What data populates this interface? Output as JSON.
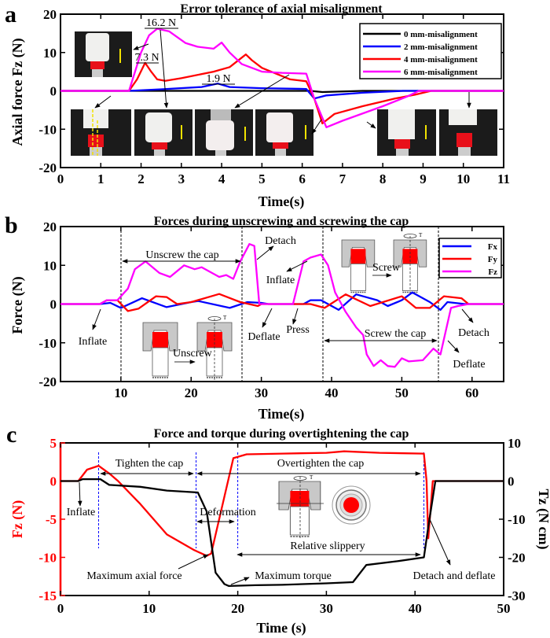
{
  "panel_labels": [
    "a",
    "b",
    "c"
  ],
  "colors": {
    "black": "#000000",
    "blue": "#0000ff",
    "red": "#ff0000",
    "magenta": "#ff00ff",
    "guide": "#0000ff"
  },
  "chart_data": [
    {
      "type": "line",
      "title": "Error tolerance of axial misalignment",
      "xlabel": "Time(s)",
      "ylabel": "Axial force Fz (N)",
      "xlim": [
        0,
        11
      ],
      "ylim": [
        -20,
        20
      ],
      "xticks": [
        0,
        1,
        2,
        3,
        4,
        5,
        6,
        7,
        8,
        9,
        10,
        11
      ],
      "yticks": [
        20,
        10,
        0,
        -10,
        -20
      ],
      "legend": "top-right",
      "series": [
        {
          "name": "0 mm-misalignment",
          "color": "#000000",
          "points": [
            [
              0,
              0
            ],
            [
              6.2,
              0
            ],
            [
              6.5,
              -0.3
            ],
            [
              7.5,
              0
            ],
            [
              11,
              0
            ]
          ]
        },
        {
          "name": "2 mm-misalignment",
          "color": "#0000ff",
          "points": [
            [
              0,
              0
            ],
            [
              1.7,
              0
            ],
            [
              2.5,
              0.4
            ],
            [
              3.5,
              1.0
            ],
            [
              3.9,
              1.9
            ],
            [
              4.2,
              1.0
            ],
            [
              5,
              0.7
            ],
            [
              6.1,
              0.5
            ],
            [
              6.3,
              -2
            ],
            [
              6.6,
              -1.2
            ],
            [
              7.5,
              -0.5
            ],
            [
              8.5,
              0
            ],
            [
              11,
              0
            ]
          ]
        },
        {
          "name": "4 mm-misalignment",
          "color": "#ff0000",
          "points": [
            [
              0,
              0
            ],
            [
              1.7,
              0
            ],
            [
              1.9,
              3
            ],
            [
              2.1,
              7.3
            ],
            [
              2.25,
              5
            ],
            [
              2.4,
              3
            ],
            [
              2.6,
              2.6
            ],
            [
              3,
              3.3
            ],
            [
              3.8,
              5
            ],
            [
              4.2,
              6.2
            ],
            [
              4.6,
              9.5
            ],
            [
              4.75,
              8
            ],
            [
              5,
              6
            ],
            [
              5.7,
              3
            ],
            [
              6.1,
              2.5
            ],
            [
              6.3,
              -2
            ],
            [
              6.5,
              -8.5
            ],
            [
              6.8,
              -6
            ],
            [
              7.5,
              -4
            ],
            [
              8.3,
              -2
            ],
            [
              8.8,
              -1
            ],
            [
              9.2,
              0
            ],
            [
              11,
              0
            ]
          ]
        },
        {
          "name": "6 mm-misalignment",
          "color": "#ff00ff",
          "points": [
            [
              0,
              0
            ],
            [
              1.7,
              0
            ],
            [
              2,
              10
            ],
            [
              2.2,
              14.5
            ],
            [
              2.4,
              16.2
            ],
            [
              2.7,
              15.5
            ],
            [
              3.1,
              12.5
            ],
            [
              3.4,
              11.5
            ],
            [
              3.8,
              11
            ],
            [
              4.0,
              12.6
            ],
            [
              4.2,
              10
            ],
            [
              4.5,
              7
            ],
            [
              5,
              5
            ],
            [
              5.5,
              4.7
            ],
            [
              6.1,
              4.5
            ],
            [
              6.3,
              -2
            ],
            [
              6.6,
              -9.5
            ],
            [
              7,
              -7.8
            ],
            [
              8,
              -4
            ],
            [
              8.6,
              -1.5
            ],
            [
              8.9,
              0
            ],
            [
              11,
              0
            ]
          ]
        }
      ],
      "annotations": {
        "peak_6mm": "16.2 N",
        "peak_4mm": "7.3 N",
        "peak_2mm": "1.9 N"
      }
    },
    {
      "type": "line",
      "title": "Forces during unscrewing and screwing the cap",
      "xlabel": "Time(s)",
      "ylabel": "Force (N)",
      "xlim": [
        1.4,
        64.5
      ],
      "ylim": [
        -20,
        20
      ],
      "xticks": [
        10,
        20,
        30,
        40,
        50,
        60
      ],
      "yticks": [
        20,
        10,
        0,
        -10,
        -20
      ],
      "legend": "top-right",
      "series": [
        {
          "name": "Fx",
          "color": "#0000ff",
          "points": [
            [
              1.4,
              0
            ],
            [
              7,
              0
            ],
            [
              8.5,
              0.3
            ],
            [
              10,
              -1
            ],
            [
              13,
              1.5
            ],
            [
              16.5,
              -0.8
            ],
            [
              20,
              0.5
            ],
            [
              21,
              0.8
            ],
            [
              25.5,
              -1
            ],
            [
              28,
              0.5
            ],
            [
              30,
              0.3
            ],
            [
              31,
              0
            ],
            [
              36,
              0
            ],
            [
              37,
              1
            ],
            [
              38.5,
              1
            ],
            [
              41,
              -1.5
            ],
            [
              43.5,
              2.5
            ],
            [
              46.5,
              1
            ],
            [
              48,
              -0.5
            ],
            [
              50,
              1
            ],
            [
              51.5,
              3
            ],
            [
              54,
              0.5
            ],
            [
              55.5,
              -1.5
            ],
            [
              56.5,
              0.5
            ],
            [
              59,
              0
            ],
            [
              64.5,
              0
            ]
          ]
        },
        {
          "name": "Fy",
          "color": "#ff0000",
          "points": [
            [
              1.4,
              0
            ],
            [
              7,
              0
            ],
            [
              8,
              1
            ],
            [
              9.5,
              1
            ],
            [
              11,
              -1.8
            ],
            [
              12.5,
              -1.2
            ],
            [
              15,
              2
            ],
            [
              16.5,
              1.8
            ],
            [
              18,
              0
            ],
            [
              20,
              0.5
            ],
            [
              24,
              2.6
            ],
            [
              27,
              0.5
            ],
            [
              29.5,
              -0.5
            ],
            [
              30,
              0
            ],
            [
              37,
              0
            ],
            [
              39,
              -1
            ],
            [
              42,
              2.5
            ],
            [
              45.5,
              -0.5
            ],
            [
              50,
              2
            ],
            [
              52,
              -1
            ],
            [
              54,
              -1
            ],
            [
              56,
              2
            ],
            [
              58.5,
              1.5
            ],
            [
              59.5,
              0
            ],
            [
              64.5,
              0
            ]
          ]
        },
        {
          "name": "Fz",
          "color": "#ff00ff",
          "points": [
            [
              1.4,
              0
            ],
            [
              7,
              0
            ],
            [
              8,
              1
            ],
            [
              9.5,
              1
            ],
            [
              11,
              4
            ],
            [
              12,
              9
            ],
            [
              13.5,
              11
            ],
            [
              15.5,
              8
            ],
            [
              17,
              7
            ],
            [
              19,
              10
            ],
            [
              20.5,
              9
            ],
            [
              21.5,
              9.5
            ],
            [
              24,
              7
            ],
            [
              25,
              7.5
            ],
            [
              26,
              6.5
            ],
            [
              27,
              11
            ],
            [
              28.3,
              15.5
            ],
            [
              29,
              15
            ],
            [
              29.7,
              0
            ],
            [
              34.5,
              0
            ],
            [
              36,
              11
            ],
            [
              37,
              12
            ],
            [
              38.5,
              12.8
            ],
            [
              39.5,
              10
            ],
            [
              40.5,
              3
            ],
            [
              42,
              -2
            ],
            [
              43.5,
              -6
            ],
            [
              44.5,
              -8
            ],
            [
              45,
              -13
            ],
            [
              46,
              -16
            ],
            [
              47,
              -14.5
            ],
            [
              48,
              -16
            ],
            [
              49,
              -16.2
            ],
            [
              50,
              -14
            ],
            [
              51,
              -14.8
            ],
            [
              53,
              -14.5
            ],
            [
              54.5,
              -11.5
            ],
            [
              55.5,
              -13
            ],
            [
              57,
              -1
            ],
            [
              58,
              -0.5
            ],
            [
              59.5,
              0
            ],
            [
              64.5,
              0
            ]
          ]
        }
      ],
      "annotations": {
        "unscrew_phase": "Unscrew the cap",
        "screw_phase": "Screw the cap",
        "detach_1": "Detach",
        "inflate_1": "Inflate",
        "inflate_2": "Inflate",
        "deflate_1": "Deflate",
        "press": "Press",
        "detach_2": "Detach",
        "deflate_2": "Deflate",
        "unscrew_diagram": "Unscrew",
        "screw_diagram": "Screw",
        "torque_symbol": "T"
      }
    },
    {
      "type": "line",
      "title": "Force and torque during overtightening the cap",
      "xlabel": "Time (s)",
      "ylabel": "Fz (N)",
      "ylabel_right": "Tz (N cm)",
      "xlim": [
        0,
        50
      ],
      "ylim": [
        -15,
        5
      ],
      "ylim_right": [
        -30,
        10
      ],
      "xticks": [
        0,
        10,
        20,
        30,
        40,
        50
      ],
      "yticks": [
        5,
        0,
        -5,
        -10,
        -15
      ],
      "yticks_right": [
        10,
        0,
        -10,
        -20,
        -30
      ],
      "series": [
        {
          "name": "Fz",
          "axis": "left",
          "color": "#ff0000",
          "points": [
            [
              0,
              0
            ],
            [
              2,
              0
            ],
            [
              3,
              1.5
            ],
            [
              4.3,
              2
            ],
            [
              5.5,
              1
            ],
            [
              6.5,
              0
            ],
            [
              9,
              -3
            ],
            [
              12,
              -7
            ],
            [
              15,
              -9
            ],
            [
              16.5,
              -9.8
            ],
            [
              17,
              -9.5
            ],
            [
              18.5,
              -2
            ],
            [
              19.5,
              3
            ],
            [
              21,
              3.5
            ],
            [
              25,
              3.6
            ],
            [
              30,
              3.7
            ],
            [
              32,
              3.9
            ],
            [
              36,
              3.7
            ],
            [
              41,
              3.6
            ],
            [
              41.3,
              0
            ],
            [
              41.5,
              -7.5
            ],
            [
              42,
              0
            ],
            [
              50,
              0
            ]
          ]
        },
        {
          "name": "Tz",
          "axis": "right",
          "color": "#000000",
          "points": [
            [
              0,
              0
            ],
            [
              2,
              0
            ],
            [
              2.5,
              0.5
            ],
            [
              4.5,
              0.5
            ],
            [
              5.5,
              -1
            ],
            [
              9,
              -1.5
            ],
            [
              12,
              -2.5
            ],
            [
              15.5,
              -3
            ],
            [
              16.5,
              -8
            ],
            [
              17.5,
              -24
            ],
            [
              18.5,
              -27
            ],
            [
              19,
              -27.5
            ],
            [
              22,
              -27.3
            ],
            [
              25,
              -27.2
            ],
            [
              30,
              -26.8
            ],
            [
              33,
              -26.5
            ],
            [
              34.5,
              -22
            ],
            [
              38,
              -21
            ],
            [
              41,
              -20
            ],
            [
              41.5,
              -12
            ],
            [
              42.3,
              0
            ],
            [
              50,
              0
            ]
          ]
        }
      ],
      "annotations": {
        "tighten": "Tighten the cap",
        "overtighten": "Overtighten the cap",
        "inflate": "Inflate",
        "deformation": "Deformation",
        "relative_slippery": "Relative slippery",
        "max_axial_force": "Maximum axial force",
        "max_torque": "Maximum torque",
        "detach_deflate": "Detach and deflate",
        "torque_symbol": "T"
      }
    }
  ]
}
